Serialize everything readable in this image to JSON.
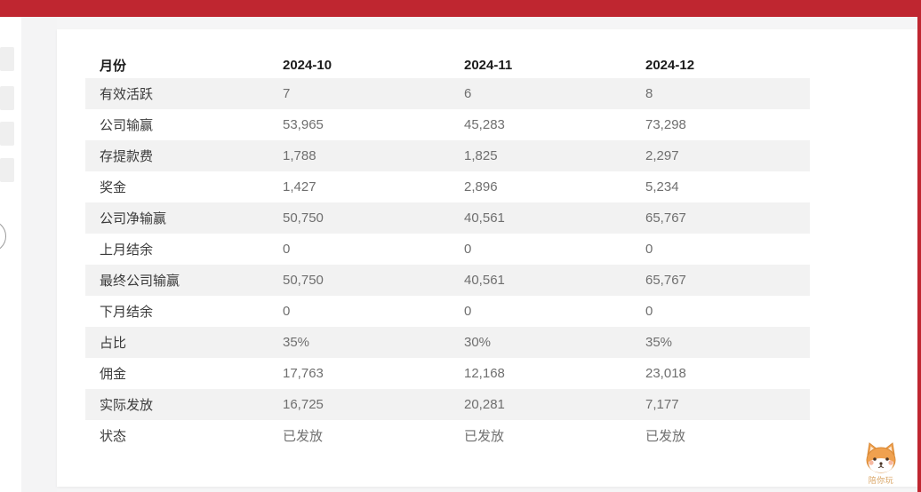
{
  "colors": {
    "accent_red": "#bf2630",
    "row_stripe": "#f2f2f2",
    "card_bg": "#ffffff",
    "page_bg": "#f5f5f6",
    "header_text": "#1c1c1c",
    "label_text": "#3a3a3a",
    "value_text": "#6f6f6f"
  },
  "table": {
    "columns": [
      "月份",
      "2024-10",
      "2024-11",
      "2024-12"
    ],
    "rows": [
      {
        "label": "有效活跃",
        "values": [
          "7",
          "6",
          "8"
        ]
      },
      {
        "label": "公司输赢",
        "values": [
          "53,965",
          "45,283",
          "73,298"
        ]
      },
      {
        "label": "存提款费",
        "values": [
          "1,788",
          "1,825",
          "2,297"
        ]
      },
      {
        "label": "奖金",
        "values": [
          "1,427",
          "2,896",
          "5,234"
        ]
      },
      {
        "label": "公司净输赢",
        "values": [
          "50,750",
          "40,561",
          "65,767"
        ]
      },
      {
        "label": "上月结余",
        "values": [
          "0",
          "0",
          "0"
        ]
      },
      {
        "label": "最终公司输赢",
        "values": [
          "50,750",
          "40,561",
          "65,767"
        ]
      },
      {
        "label": "下月结余",
        "values": [
          "0",
          "0",
          "0"
        ]
      },
      {
        "label": "占比",
        "values": [
          "35%",
          "30%",
          "35%"
        ]
      },
      {
        "label": "佣金",
        "values": [
          "17,763",
          "12,168",
          "23,018"
        ]
      },
      {
        "label": "实际发放",
        "values": [
          "16,725",
          "20,281",
          "7,177"
        ]
      },
      {
        "label": "状态",
        "values": [
          "已发放",
          "已发放",
          "已发放"
        ]
      }
    ]
  },
  "mascot": {
    "caption": "陪你玩"
  }
}
